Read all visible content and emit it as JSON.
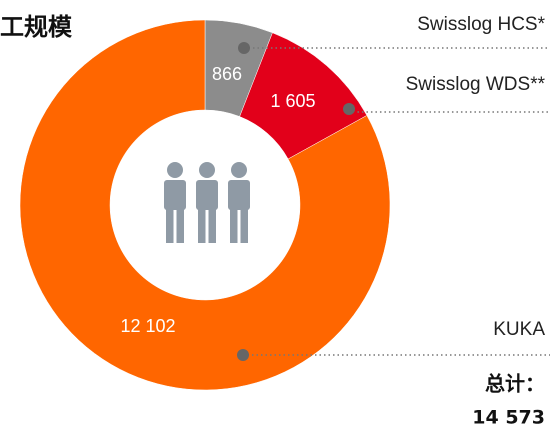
{
  "chart_data": {
    "type": "donut",
    "title": "工规模",
    "categories": [
      "Swisslog HCS*",
      "Swisslog WDS**",
      "KUKA"
    ],
    "values": [
      866,
      1605,
      12102
    ],
    "value_labels": [
      "866",
      "1 605",
      "12 102"
    ],
    "colors": [
      "#8c8c8c",
      "#e2001a",
      "#ff6600"
    ],
    "total_label": "总计：",
    "total": {
      "value": 14573,
      "label": "14 573"
    }
  }
}
